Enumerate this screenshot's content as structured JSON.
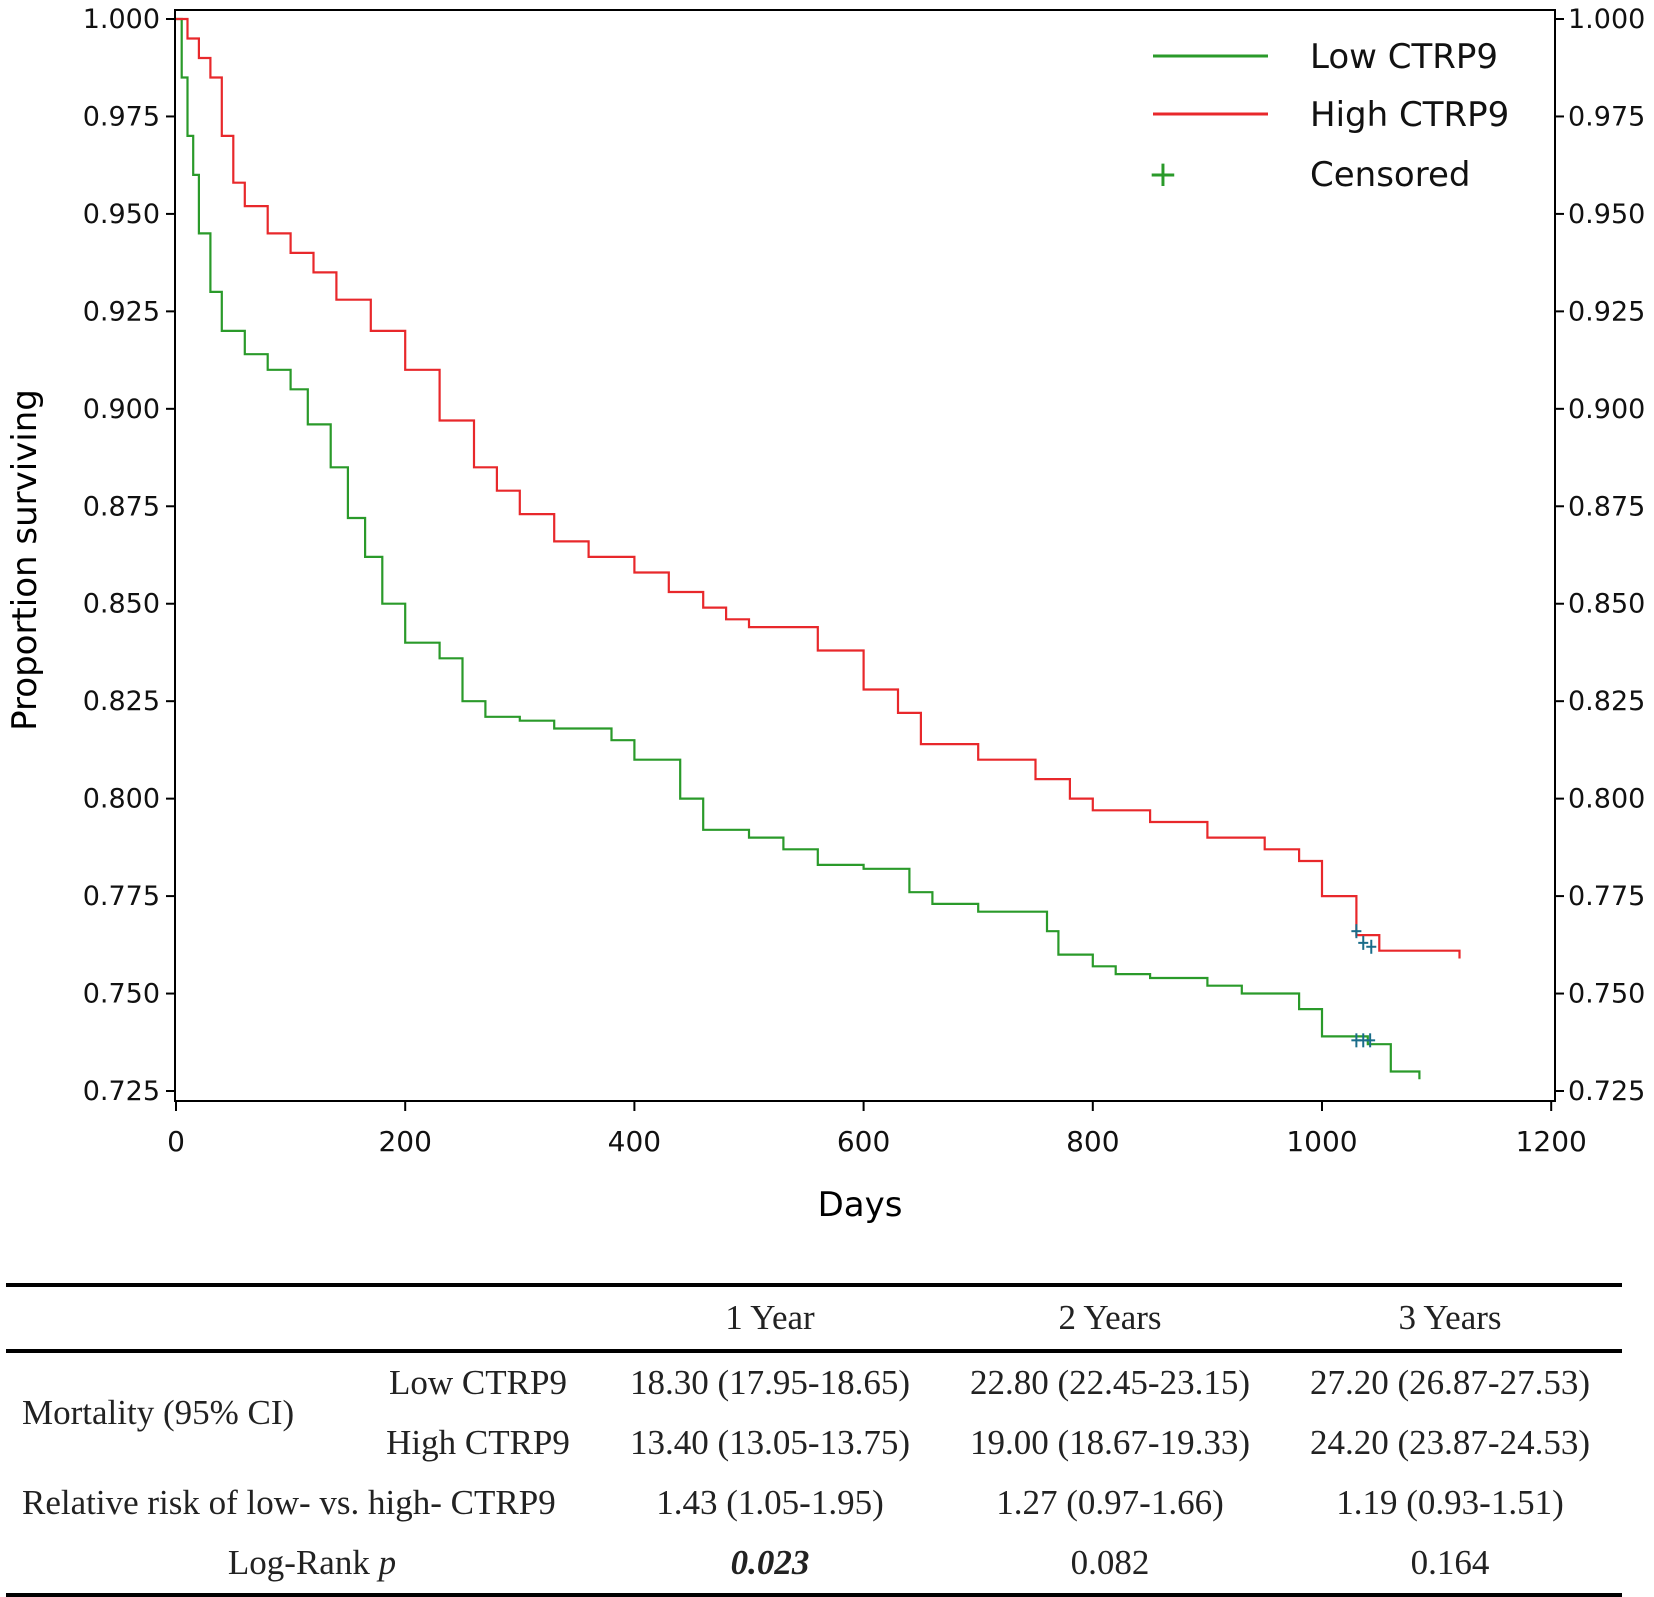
{
  "chart_data": {
    "type": "line",
    "subtype": "kaplan-meier-step",
    "xlabel": "Days",
    "ylabel": "Proportion surviving",
    "xlim": [
      0,
      1200
    ],
    "ylim": [
      0.725,
      1.0
    ],
    "x_ticks": [
      "0",
      "200",
      "400",
      "600",
      "800",
      "1000",
      "1200"
    ],
    "y_ticks": [
      "0.725",
      "0.750",
      "0.775",
      "0.800",
      "0.825",
      "0.850",
      "0.875",
      "0.900",
      "0.925",
      "0.950",
      "0.975",
      "1.000"
    ],
    "legend_position": "top-right",
    "legend": [
      {
        "label": "Low CTRP9",
        "kind": "line",
        "color": "#2a9a2a"
      },
      {
        "label": "High CTRP9",
        "kind": "line",
        "color": "#e8282b"
      },
      {
        "label": "Censored",
        "kind": "marker",
        "symbol": "+",
        "color": "#2a9a2a"
      }
    ],
    "series": [
      {
        "name": "Low CTRP9",
        "color": "#2a9a2a",
        "x": [
          0,
          5,
          10,
          15,
          20,
          30,
          40,
          60,
          80,
          100,
          115,
          135,
          150,
          165,
          180,
          200,
          230,
          250,
          270,
          300,
          330,
          380,
          400,
          440,
          460,
          500,
          530,
          560,
          600,
          640,
          660,
          700,
          760,
          770,
          800,
          820,
          850,
          900,
          930,
          980,
          1000,
          1040,
          1060,
          1085
        ],
        "y": [
          1.0,
          0.985,
          0.97,
          0.96,
          0.945,
          0.93,
          0.92,
          0.914,
          0.91,
          0.905,
          0.896,
          0.885,
          0.872,
          0.862,
          0.85,
          0.84,
          0.836,
          0.825,
          0.821,
          0.82,
          0.818,
          0.815,
          0.81,
          0.8,
          0.792,
          0.79,
          0.787,
          0.783,
          0.782,
          0.776,
          0.773,
          0.771,
          0.766,
          0.76,
          0.757,
          0.755,
          0.754,
          0.752,
          0.75,
          0.746,
          0.739,
          0.737,
          0.73,
          0.728
        ],
        "censored_x": [
          1030,
          1036,
          1042
        ],
        "censored_y": [
          0.738,
          0.738,
          0.738
        ]
      },
      {
        "name": "High CTRP9",
        "color": "#e8282b",
        "x": [
          0,
          10,
          20,
          30,
          40,
          50,
          60,
          80,
          100,
          120,
          140,
          170,
          200,
          230,
          260,
          280,
          300,
          330,
          360,
          400,
          430,
          460,
          480,
          500,
          560,
          600,
          630,
          650,
          700,
          750,
          780,
          800,
          850,
          900,
          950,
          980,
          1000,
          1030,
          1050,
          1120
        ],
        "y": [
          1.0,
          0.995,
          0.99,
          0.985,
          0.97,
          0.958,
          0.952,
          0.945,
          0.94,
          0.935,
          0.928,
          0.92,
          0.91,
          0.897,
          0.885,
          0.879,
          0.873,
          0.866,
          0.862,
          0.858,
          0.853,
          0.849,
          0.846,
          0.844,
          0.838,
          0.828,
          0.822,
          0.814,
          0.81,
          0.805,
          0.8,
          0.797,
          0.794,
          0.79,
          0.787,
          0.784,
          0.775,
          0.765,
          0.761,
          0.759
        ],
        "censored_x": [
          1030,
          1036,
          1043
        ],
        "censored_y": [
          0.766,
          0.763,
          0.762
        ]
      }
    ]
  },
  "table": {
    "headers": [
      "",
      "",
      "1 Year",
      "2 Years",
      "3 Years"
    ],
    "mortality_label": "Mortality (95% CI)",
    "rows": [
      {
        "group": "Low CTRP9",
        "values": [
          "18.30 (17.95-18.65)",
          "22.80 (22.45-23.15)",
          "27.20 (26.87-27.53)"
        ]
      },
      {
        "group": "High CTRP9",
        "values": [
          "13.40 (13.05-13.75)",
          "19.00 (18.67-19.33)",
          "24.20 (23.87-24.53)"
        ]
      }
    ],
    "rr_label": "Relative risk of low- vs. high- CTRP9",
    "rr_values": [
      "1.43 (1.05-1.95)",
      "1.27 (0.97-1.66)",
      "1.19 (0.93-1.51)"
    ],
    "logrank_label": "Log-Rank",
    "logrank_p": "p",
    "logrank_values": [
      "0.023",
      "0.082",
      "0.164"
    ]
  }
}
